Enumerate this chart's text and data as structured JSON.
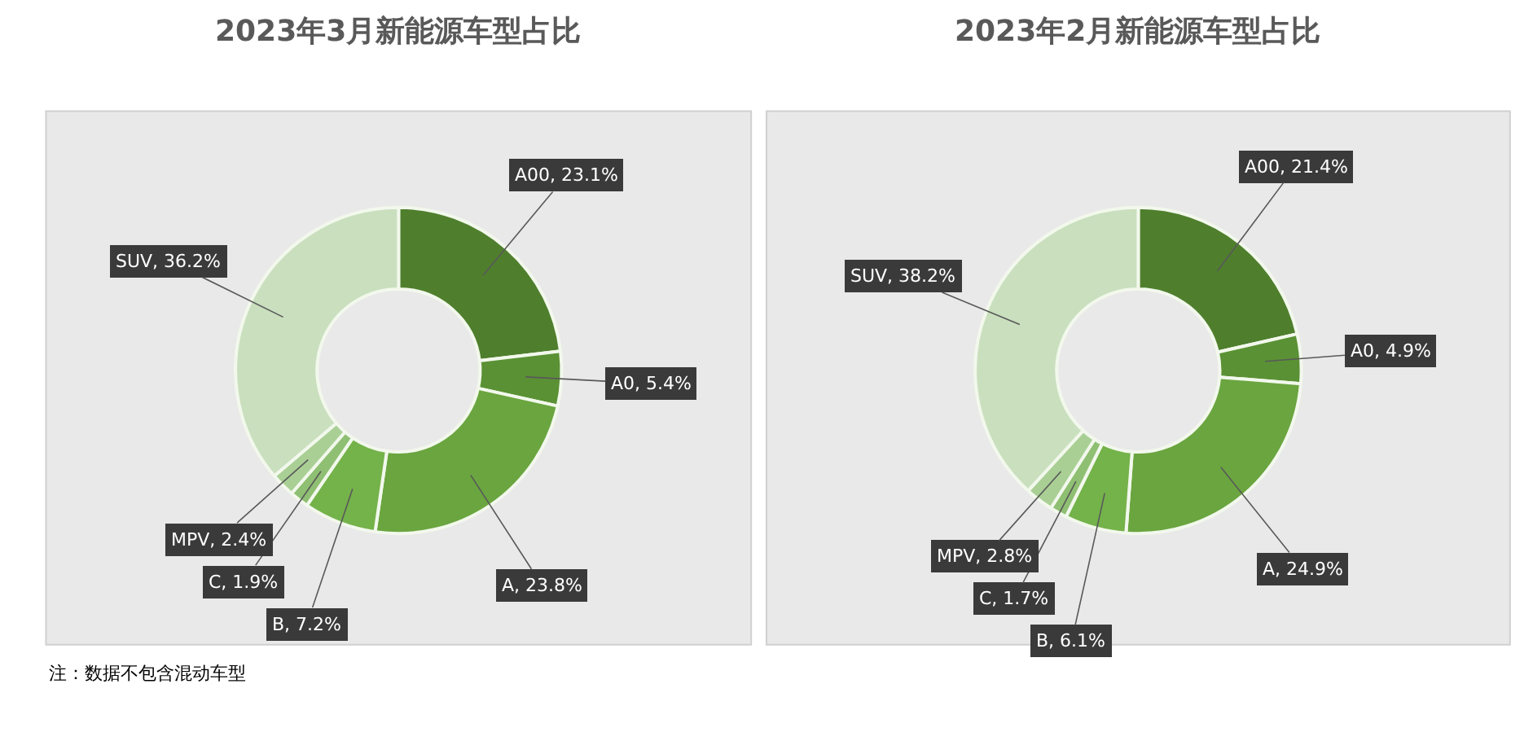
{
  "chart_data": [
    {
      "type": "donut",
      "title": "2023年3月新能源车型占比",
      "categories": [
        "A00",
        "A0",
        "A",
        "B",
        "C",
        "MPV",
        "SUV"
      ],
      "values": [
        23.1,
        5.4,
        23.8,
        7.2,
        1.9,
        2.4,
        36.2
      ],
      "value_labels": [
        "23.1%",
        "5.4%",
        "23.8%",
        "7.2%",
        "1.9%",
        "2.4%",
        "36.2%"
      ],
      "colors": [
        "#4f7f2d",
        "#5a9134",
        "#6aa53f",
        "#74b24a",
        "#8fbf72",
        "#a9cf95",
        "#c9dfbe"
      ],
      "annotations": [
        "注：数据不包含混动车型"
      ]
    },
    {
      "type": "donut",
      "title": "2023年2月新能源车型占比",
      "categories": [
        "A00",
        "A0",
        "A",
        "B",
        "C",
        "MPV",
        "SUV"
      ],
      "values": [
        21.4,
        4.9,
        24.9,
        6.1,
        1.7,
        2.8,
        38.2
      ],
      "value_labels": [
        "21.4%",
        "4.9%",
        "24.9%",
        "6.1%",
        "1.7%",
        "2.8%",
        "38.2%"
      ],
      "colors": [
        "#4f7f2d",
        "#5a9134",
        "#6aa53f",
        "#74b24a",
        "#8fbf72",
        "#a9cf95",
        "#c9dfbe"
      ]
    }
  ]
}
